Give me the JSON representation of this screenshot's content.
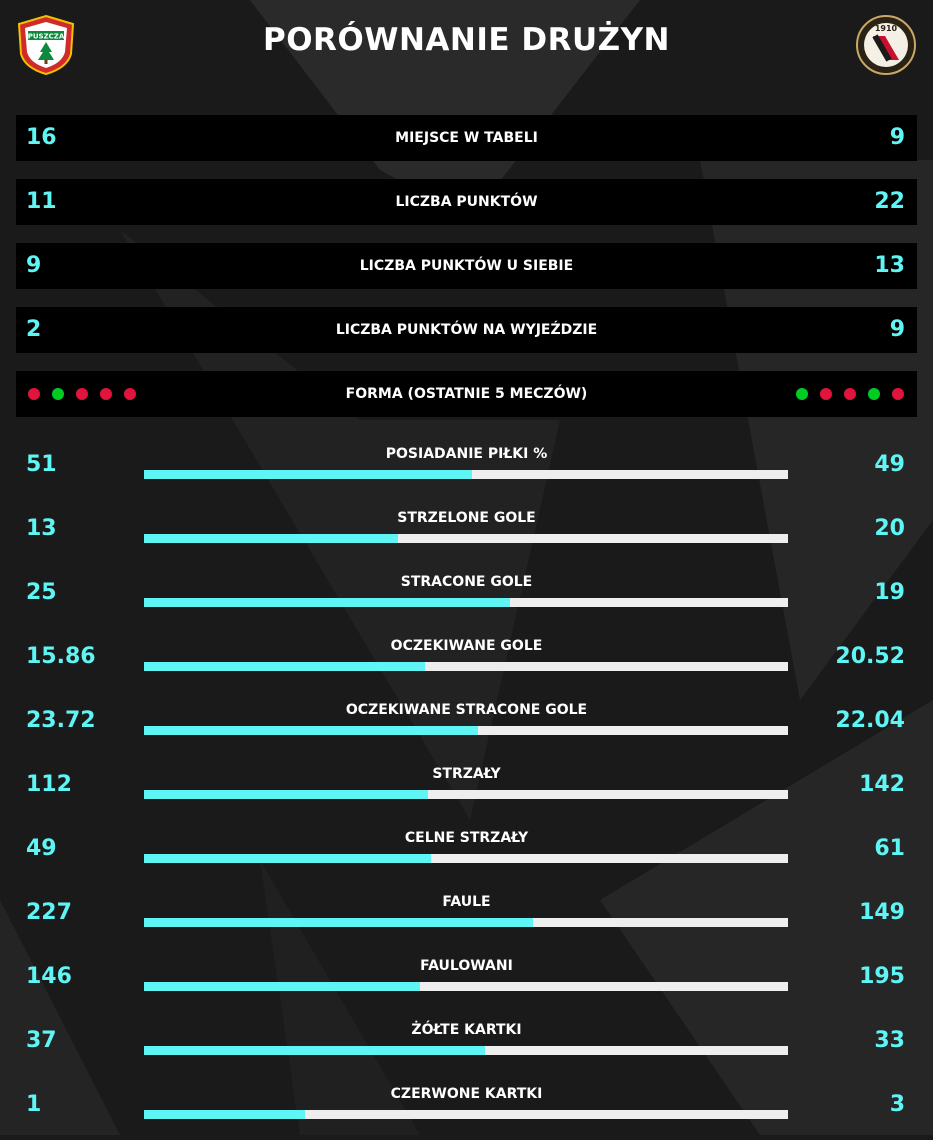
{
  "title": "PORÓWNANIE DRUŻYN",
  "colors": {
    "accent": "#5ff5f5",
    "win": "#00cc22",
    "loss": "#e0143c",
    "bar_track": "#eeeeee"
  },
  "home_logo": {
    "icon": "puszcza-niepolomice-crest-icon",
    "text": "PUSZCZA"
  },
  "away_logo": {
    "icon": "widzew-lodz-crest-icon",
    "text": "1910"
  },
  "table_rows": [
    {
      "label": "MIEJSCE W TABELI",
      "home": "16",
      "away": "9"
    },
    {
      "label": "LICZBA PUNKTÓW",
      "home": "11",
      "away": "22"
    },
    {
      "label": "LICZBA PUNKTÓW U SIEBIE",
      "home": "9",
      "away": "13"
    },
    {
      "label": "LICZBA PUNKTÓW NA WYJEŹDZIE",
      "home": "2",
      "away": "9"
    }
  ],
  "form": {
    "label": "FORMA (OSTATNIE 5 MECZÓW)",
    "home": [
      "loss",
      "win",
      "loss",
      "loss",
      "loss"
    ],
    "away": [
      "win",
      "loss",
      "loss",
      "win",
      "loss"
    ]
  },
  "stats": [
    {
      "label": "POSIADANIE PIŁKI %",
      "home": "51",
      "away": "49",
      "home_share": 0.51
    },
    {
      "label": "STRZELONE GOLE",
      "home": "13",
      "away": "20",
      "home_share": 0.394
    },
    {
      "label": "STRACONE GOLE",
      "home": "25",
      "away": "19",
      "home_share": 0.568
    },
    {
      "label": "OCZEKIWANE GOLE",
      "home": "15.86",
      "away": "20.52",
      "home_share": 0.436
    },
    {
      "label": "OCZEKIWANE STRACONE GOLE",
      "home": "23.72",
      "away": "22.04",
      "home_share": 0.518
    },
    {
      "label": "STRZAŁY",
      "home": "112",
      "away": "142",
      "home_share": 0.441
    },
    {
      "label": "CELNE STRZAŁY",
      "home": "49",
      "away": "61",
      "home_share": 0.445
    },
    {
      "label": "FAULE",
      "home": "227",
      "away": "149",
      "home_share": 0.604
    },
    {
      "label": "FAULOWANI",
      "home": "146",
      "away": "195",
      "home_share": 0.428
    },
    {
      "label": "ŻÓŁTE KARTKI",
      "home": "37",
      "away": "33",
      "home_share": 0.529
    },
    {
      "label": "CZERWONE KARTKI",
      "home": "1",
      "away": "3",
      "home_share": 0.25
    }
  ]
}
